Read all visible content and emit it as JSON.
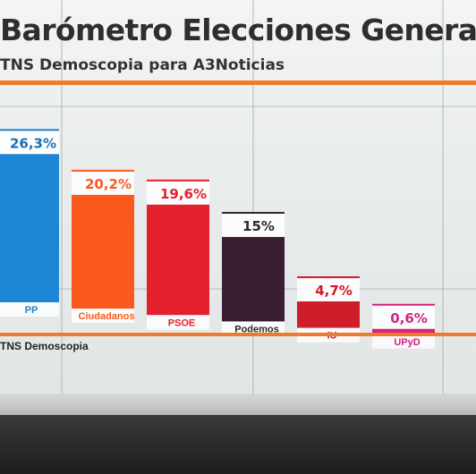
{
  "header": {
    "title": "Barómetro Elecciones Generales",
    "subtitle": "TNS Demoscopia para A3Noticias"
  },
  "footer": {
    "source": "TNS Demoscopia"
  },
  "colors": {
    "accent_rule": "#f07a2a",
    "PP": "#1e86d6",
    "Ciudadanos": "#fb5a1e",
    "PSOE": "#e3202c",
    "Podemos": "#3a1f32",
    "IU": "#cf1d2c",
    "UPyD": "#d3247f"
  },
  "chart_data": {
    "type": "bar",
    "title": "Barómetro Elecciones Generales",
    "subtitle": "TNS Demoscopia para A3Noticias",
    "categories": [
      "PP",
      "Ciudadanos",
      "PSOE",
      "Podemos",
      "IU",
      "UPyD"
    ],
    "values": [
      26.3,
      20.2,
      19.6,
      15,
      4.7,
      0.6
    ],
    "value_labels": [
      "26,3%",
      "20,2%",
      "19,6%",
      "15%",
      "4,7%",
      "0,6%"
    ],
    "xlabel": "",
    "ylabel": "",
    "grid": false,
    "legend": "none"
  }
}
